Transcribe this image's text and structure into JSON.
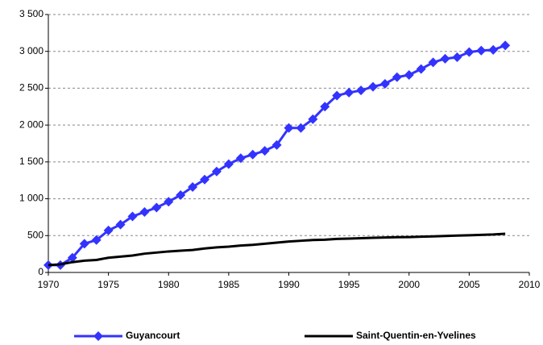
{
  "chart_data": {
    "type": "line",
    "x": [
      1970,
      1971,
      1972,
      1973,
      1974,
      1975,
      1976,
      1977,
      1978,
      1979,
      1980,
      1981,
      1982,
      1983,
      1984,
      1985,
      1986,
      1987,
      1988,
      1989,
      1990,
      1991,
      1992,
      1993,
      1994,
      1995,
      1996,
      1997,
      1998,
      1999,
      2000,
      2001,
      2002,
      2003,
      2004,
      2005,
      2006,
      2007,
      2008
    ],
    "series": [
      {
        "name": "Guyancourt",
        "color": "#3333ff",
        "marker": "diamond",
        "values": [
          100,
          100,
          200,
          390,
          440,
          570,
          650,
          760,
          820,
          880,
          960,
          1050,
          1160,
          1260,
          1370,
          1470,
          1550,
          1600,
          1650,
          1730,
          1960,
          1960,
          2080,
          2250,
          2400,
          2440,
          2470,
          2520,
          2560,
          2650,
          2680,
          2760,
          2850,
          2900,
          2920,
          2990,
          3010,
          3020,
          3080
        ]
      },
      {
        "name": "Saint-Quentin-en-Yvelines",
        "color": "#000000",
        "values": [
          100,
          110,
          140,
          160,
          170,
          200,
          215,
          230,
          255,
          270,
          285,
          295,
          305,
          325,
          340,
          350,
          365,
          375,
          390,
          405,
          420,
          430,
          440,
          445,
          455,
          460,
          465,
          470,
          475,
          478,
          480,
          485,
          490,
          495,
          500,
          505,
          510,
          515,
          525
        ]
      }
    ],
    "xlim": [
      1970,
      2010
    ],
    "xticks": [
      1970,
      1975,
      1980,
      1985,
      1990,
      1995,
      2000,
      2005,
      2010
    ],
    "ylim": [
      0,
      3500
    ],
    "yticks": [
      0,
      500,
      {
        "value": 1000,
        "label": "1 000"
      },
      {
        "value": 1500,
        "label": "1 500"
      },
      {
        "value": 2000,
        "label": "2 000"
      },
      {
        "value": 2500,
        "label": "2 500"
      },
      {
        "value": 3000,
        "label": "3 000"
      },
      {
        "value": 3500,
        "label": "3 500"
      }
    ],
    "grid": true,
    "legend": "bottom"
  }
}
